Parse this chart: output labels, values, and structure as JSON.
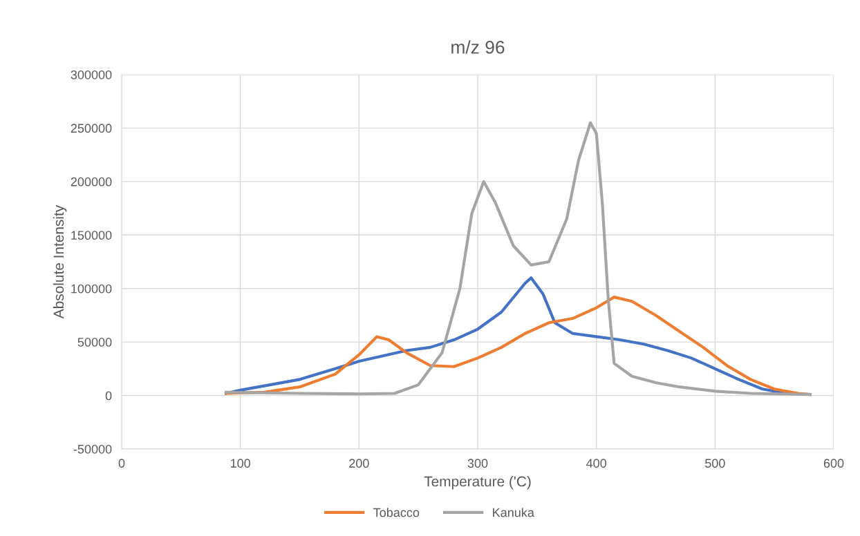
{
  "chart_data": {
    "type": "line",
    "title": "m/z 96",
    "xlabel": "Temperature ('C)",
    "ylabel": "Absolute Intensity",
    "xlim": [
      0,
      600
    ],
    "xticks": [
      0,
      100,
      200,
      300,
      400,
      500,
      600
    ],
    "ylim": [
      -50000,
      300000
    ],
    "yticks": [
      -50000,
      0,
      50000,
      100000,
      150000,
      200000,
      250000,
      300000
    ],
    "grid": true,
    "legend": "bottom",
    "marker": "none",
    "line_style": "solid",
    "series": [
      {
        "color": "#4472c4",
        "x": [
          88,
          100,
          150,
          180,
          200,
          220,
          240,
          260,
          280,
          300,
          320,
          340,
          345,
          355,
          365,
          380,
          400,
          420,
          440,
          460,
          480,
          500,
          520,
          540,
          560,
          580
        ],
        "values": [
          2000,
          5000,
          15000,
          25000,
          32000,
          37000,
          42000,
          45000,
          52000,
          62000,
          78000,
          105000,
          110000,
          95000,
          68000,
          58000,
          55000,
          52000,
          48000,
          42000,
          35000,
          25000,
          15000,
          6000,
          2000,
          1000
        ]
      },
      {
        "name": "Tobacco",
        "color": "#ed7d31",
        "x": [
          88,
          120,
          150,
          180,
          200,
          215,
          225,
          240,
          260,
          280,
          300,
          320,
          340,
          360,
          380,
          400,
          415,
          430,
          450,
          470,
          490,
          510,
          530,
          550,
          570,
          580
        ],
        "values": [
          2000,
          3000,
          8000,
          20000,
          38000,
          55000,
          52000,
          40000,
          28000,
          27000,
          35000,
          45000,
          58000,
          68000,
          72000,
          82000,
          92000,
          88000,
          75000,
          60000,
          45000,
          28000,
          15000,
          6000,
          2000,
          1000
        ]
      },
      {
        "name": "Kanuka",
        "color": "#a5a5a5",
        "x": [
          88,
          150,
          200,
          230,
          250,
          270,
          285,
          295,
          305,
          315,
          330,
          345,
          360,
          375,
          385,
          395,
          400,
          405,
          410,
          415,
          430,
          450,
          470,
          500,
          530,
          580
        ],
        "values": [
          3000,
          2000,
          1500,
          2000,
          10000,
          40000,
          100000,
          170000,
          200000,
          180000,
          140000,
          122000,
          125000,
          165000,
          220000,
          255000,
          245000,
          180000,
          90000,
          30000,
          18000,
          12000,
          8000,
          4000,
          2000,
          1000
        ]
      }
    ]
  }
}
